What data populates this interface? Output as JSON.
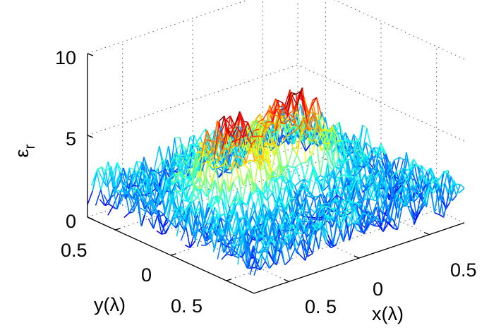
{
  "chart_data": {
    "type": "surface",
    "colormap": "jet",
    "description_of_shape": "noisy background near 1-3 with two raised blobs reaching about 5-6",
    "x_label": "x(λ)",
    "y_label": "y(λ)",
    "z_label_main": "ε",
    "z_label_sub": "r",
    "x_ticks": [
      "0. 5",
      "0",
      "0.5"
    ],
    "x_tick_values": [
      -0.5,
      0,
      0.5
    ],
    "y_ticks": [
      "0.5",
      "0",
      "0. 5"
    ],
    "y_tick_values": [
      0.5,
      0,
      -0.5
    ],
    "z_ticks": [
      "10",
      "5",
      "0"
    ],
    "z_tick_values": [
      10,
      5,
      0
    ],
    "xlim": [
      -0.75,
      0.75
    ],
    "ylim": [
      -0.75,
      0.75
    ],
    "zlim": [
      0,
      10
    ],
    "background_level": 1.9,
    "background_noise_amplitude": 1.1,
    "peaks": [
      {
        "x": -0.2,
        "y": 0.15,
        "height": 3.8
      },
      {
        "x": 0.3,
        "y": 0.2,
        "height": 3.9
      }
    ],
    "grid": true
  }
}
